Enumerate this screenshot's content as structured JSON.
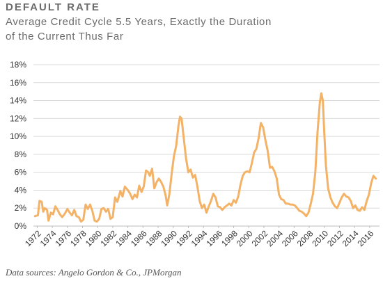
{
  "header": {
    "title": "DEFAULT RATE",
    "subtitle_line1": "Average Credit Cycle 5.5 Years, Exactly the Duration",
    "subtitle_line2": "of the Current Thus Far"
  },
  "footer": {
    "source": "Data sources: Angelo Gordon & Co., JPMorgan"
  },
  "chart_data": {
    "type": "line",
    "title": "DEFAULT RATE",
    "subtitle": "Average Credit Cycle 5.5 Years, Exactly the Duration of the Current Thus Far",
    "xlabel": "",
    "ylabel": "",
    "xlim": [
      1971.5,
      2017.3
    ],
    "ylim": [
      0,
      18
    ],
    "yticks": [
      0,
      2,
      4,
      6,
      8,
      10,
      12,
      14,
      16,
      18
    ],
    "ytick_labels": [
      "0%",
      "2%",
      "4%",
      "6%",
      "8%",
      "10%",
      "12%",
      "14%",
      "16%",
      "18%"
    ],
    "xtick_labels": [
      "1972",
      "1974",
      "1976",
      "1978",
      "1980",
      "1982",
      "1984",
      "1986",
      "1988",
      "1990",
      "1992",
      "1994",
      "1996",
      "1998",
      "2000",
      "2002",
      "2004",
      "2006",
      "2008",
      "2010",
      "2012",
      "2014",
      "2016"
    ],
    "xticks": [
      1972,
      1974,
      1976,
      1978,
      1980,
      1982,
      1984,
      1986,
      1988,
      1990,
      1992,
      1994,
      1996,
      1998,
      2000,
      2002,
      2004,
      2006,
      2008,
      2010,
      2012,
      2014,
      2016
    ],
    "grid": "horizontal",
    "legend": "none",
    "series": [
      {
        "color": "#f4b266",
        "points": [
          [
            1971.7,
            1.1
          ],
          [
            1972.1,
            1.2
          ],
          [
            1972.3,
            2.8
          ],
          [
            1972.6,
            2.7
          ],
          [
            1972.8,
            1.6
          ],
          [
            1973.0,
            2.0
          ],
          [
            1973.3,
            1.8
          ],
          [
            1973.5,
            0.6
          ],
          [
            1973.8,
            1.5
          ],
          [
            1974.1,
            1.3
          ],
          [
            1974.4,
            2.2
          ],
          [
            1974.7,
            1.8
          ],
          [
            1975.0,
            1.3
          ],
          [
            1975.3,
            1.0
          ],
          [
            1975.6,
            1.3
          ],
          [
            1976.0,
            1.9
          ],
          [
            1976.3,
            1.5
          ],
          [
            1976.6,
            1.2
          ],
          [
            1976.9,
            1.8
          ],
          [
            1977.2,
            1.1
          ],
          [
            1977.5,
            1.0
          ],
          [
            1977.8,
            0.5
          ],
          [
            1978.1,
            0.7
          ],
          [
            1978.4,
            2.4
          ],
          [
            1978.7,
            1.9
          ],
          [
            1979.0,
            2.4
          ],
          [
            1979.3,
            1.7
          ],
          [
            1979.6,
            0.6
          ],
          [
            1979.9,
            0.5
          ],
          [
            1980.2,
            0.8
          ],
          [
            1980.5,
            1.9
          ],
          [
            1980.8,
            2.0
          ],
          [
            1981.1,
            1.6
          ],
          [
            1981.4,
            1.9
          ],
          [
            1981.7,
            0.8
          ],
          [
            1982.0,
            1.0
          ],
          [
            1982.3,
            3.2
          ],
          [
            1982.6,
            2.7
          ],
          [
            1983.0,
            3.9
          ],
          [
            1983.3,
            3.3
          ],
          [
            1983.6,
            4.4
          ],
          [
            1984.0,
            4.0
          ],
          [
            1984.3,
            3.6
          ],
          [
            1984.6,
            3.0
          ],
          [
            1984.9,
            3.5
          ],
          [
            1985.2,
            3.2
          ],
          [
            1985.5,
            4.5
          ],
          [
            1985.8,
            3.8
          ],
          [
            1986.1,
            4.4
          ],
          [
            1986.4,
            6.2
          ],
          [
            1986.7,
            6.0
          ],
          [
            1986.9,
            5.6
          ],
          [
            1987.2,
            6.4
          ],
          [
            1987.5,
            4.2
          ],
          [
            1987.8,
            4.9
          ],
          [
            1988.1,
            5.3
          ],
          [
            1988.4,
            4.9
          ],
          [
            1988.7,
            4.4
          ],
          [
            1989.0,
            3.4
          ],
          [
            1989.2,
            2.3
          ],
          [
            1989.5,
            3.6
          ],
          [
            1989.8,
            5.9
          ],
          [
            1990.1,
            7.8
          ],
          [
            1990.4,
            9.0
          ],
          [
            1990.7,
            11.2
          ],
          [
            1990.9,
            12.2
          ],
          [
            1991.1,
            12.0
          ],
          [
            1991.4,
            9.8
          ],
          [
            1991.7,
            7.5
          ],
          [
            1992.0,
            6.0
          ],
          [
            1992.3,
            6.3
          ],
          [
            1992.6,
            5.4
          ],
          [
            1992.9,
            5.7
          ],
          [
            1993.2,
            4.4
          ],
          [
            1993.5,
            2.8
          ],
          [
            1993.8,
            2.0
          ],
          [
            1994.1,
            2.4
          ],
          [
            1994.4,
            1.5
          ],
          [
            1994.7,
            2.2
          ],
          [
            1995.0,
            2.8
          ],
          [
            1995.3,
            3.6
          ],
          [
            1995.6,
            3.2
          ],
          [
            1995.9,
            2.2
          ],
          [
            1996.2,
            2.1
          ],
          [
            1996.5,
            1.8
          ],
          [
            1996.8,
            2.1
          ],
          [
            1997.1,
            2.3
          ],
          [
            1997.4,
            2.5
          ],
          [
            1997.7,
            2.3
          ],
          [
            1998.0,
            2.9
          ],
          [
            1998.3,
            2.6
          ],
          [
            1998.6,
            3.3
          ],
          [
            1998.9,
            4.6
          ],
          [
            1999.2,
            5.6
          ],
          [
            1999.5,
            6.0
          ],
          [
            1999.8,
            6.1
          ],
          [
            2000.1,
            6.0
          ],
          [
            2000.4,
            7.0
          ],
          [
            2000.7,
            8.2
          ],
          [
            2001.0,
            8.6
          ],
          [
            2001.3,
            9.8
          ],
          [
            2001.6,
            11.5
          ],
          [
            2001.9,
            11.0
          ],
          [
            2002.2,
            9.6
          ],
          [
            2002.5,
            8.4
          ],
          [
            2002.8,
            6.5
          ],
          [
            2003.1,
            6.6
          ],
          [
            2003.4,
            6.1
          ],
          [
            2003.7,
            5.3
          ],
          [
            2004.0,
            3.5
          ],
          [
            2004.3,
            3.0
          ],
          [
            2004.6,
            2.9
          ],
          [
            2004.9,
            2.5
          ],
          [
            2005.2,
            2.5
          ],
          [
            2005.5,
            2.4
          ],
          [
            2005.8,
            2.4
          ],
          [
            2006.1,
            2.3
          ],
          [
            2006.4,
            2.0
          ],
          [
            2006.7,
            1.7
          ],
          [
            2007.0,
            1.6
          ],
          [
            2007.3,
            1.4
          ],
          [
            2007.6,
            1.1
          ],
          [
            2007.9,
            1.5
          ],
          [
            2008.2,
            2.5
          ],
          [
            2008.5,
            3.6
          ],
          [
            2008.8,
            6.0
          ],
          [
            2009.1,
            10.5
          ],
          [
            2009.4,
            13.8
          ],
          [
            2009.6,
            14.8
          ],
          [
            2009.8,
            14.0
          ],
          [
            2010.0,
            10.2
          ],
          [
            2010.2,
            6.8
          ],
          [
            2010.5,
            4.2
          ],
          [
            2010.8,
            3.2
          ],
          [
            2011.1,
            2.6
          ],
          [
            2011.4,
            2.2
          ],
          [
            2011.7,
            2.0
          ],
          [
            2012.0,
            2.6
          ],
          [
            2012.3,
            3.2
          ],
          [
            2012.6,
            3.6
          ],
          [
            2012.9,
            3.3
          ],
          [
            2013.2,
            3.2
          ],
          [
            2013.5,
            2.8
          ],
          [
            2013.8,
            2.0
          ],
          [
            2014.1,
            2.3
          ],
          [
            2014.4,
            1.8
          ],
          [
            2014.7,
            1.7
          ],
          [
            2015.0,
            2.1
          ],
          [
            2015.3,
            1.8
          ],
          [
            2015.6,
            2.8
          ],
          [
            2015.9,
            3.5
          ],
          [
            2016.2,
            4.8
          ],
          [
            2016.5,
            5.6
          ],
          [
            2016.8,
            5.3
          ]
        ]
      }
    ]
  }
}
